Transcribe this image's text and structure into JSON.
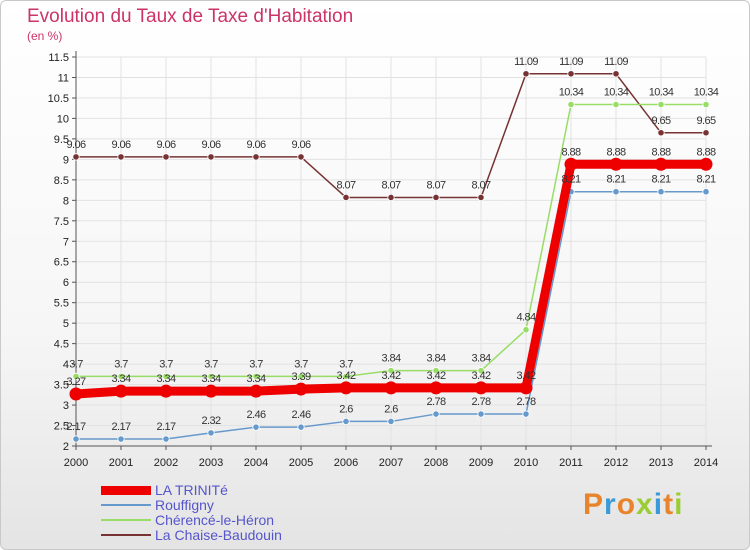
{
  "title": "Evolution du Taux de Taxe d'Habitation",
  "subtitle": "(en %)",
  "brand": "Proxiti",
  "colors": {
    "title": "#cc3366",
    "grid": "#e2e2e2",
    "axis": "#555555",
    "label": "#222222",
    "legend_text": "#5555cc",
    "brand_letters": [
      "#e8842c",
      "#3a9ad9",
      "#e8842c",
      "#9acd32",
      "#3a9ad9",
      "#e8842c",
      "#9acd32"
    ]
  },
  "chart_data": {
    "type": "line",
    "title": "Evolution du Taux de Taxe d'Habitation",
    "subtitle": "(en %)",
    "x": [
      2000,
      2001,
      2002,
      2003,
      2004,
      2005,
      2006,
      2007,
      2008,
      2009,
      2010,
      2011,
      2012,
      2013,
      2014
    ],
    "ylim": [
      2,
      11.5
    ],
    "yticks": [
      2,
      2.5,
      3,
      3.5,
      4,
      4.5,
      5,
      5.5,
      6,
      6.5,
      7,
      7.5,
      8,
      8.5,
      9,
      9.5,
      10,
      10.5,
      11,
      11.5
    ],
    "grid": true,
    "legend_position": "bottom-left",
    "series": [
      {
        "name": "LA TRINITé",
        "color": "#ee0000",
        "values": [
          3.27,
          3.34,
          3.34,
          3.34,
          3.34,
          3.39,
          3.42,
          3.42,
          3.42,
          3.42,
          3.42,
          8.88,
          8.88,
          8.88,
          8.88
        ],
        "labels": [
          "3.27",
          "3.34",
          "3.34",
          "3.34",
          "3.34",
          "3.39",
          "3.42",
          "3.42",
          "3.42",
          "3.42",
          "3.42",
          "8.88",
          "8.88",
          "8.88",
          "8.88"
        ]
      },
      {
        "name": "Rouffigny",
        "color": "#6699cc",
        "values": [
          2.17,
          2.17,
          2.17,
          2.32,
          2.46,
          2.46,
          2.6,
          2.6,
          2.78,
          2.78,
          2.78,
          8.21,
          8.21,
          8.21,
          8.21
        ],
        "labels": [
          "2.17",
          "2.17",
          "2.17",
          "2.32",
          "2.46",
          "2.46",
          "2.6",
          "2.6",
          "2.78",
          "2.78",
          "2.78",
          "8.21",
          "8.21",
          "8.21",
          "8.21"
        ]
      },
      {
        "name": "Chérencé-le-Héron",
        "color": "#99dd66",
        "values": [
          3.7,
          3.7,
          3.7,
          3.7,
          3.7,
          3.7,
          3.7,
          3.84,
          3.84,
          3.84,
          4.84,
          10.34,
          10.34,
          10.34,
          10.34
        ],
        "labels": [
          "3.7",
          "3.7",
          "3.7",
          "3.7",
          "3.7",
          "3.7",
          "3.7",
          "3.84",
          "3.84",
          "3.84",
          "4.84",
          "10.34",
          "10.34",
          "10.34",
          "10.34"
        ]
      },
      {
        "name": "La Chaise-Baudouin",
        "color": "#773333",
        "values": [
          9.06,
          9.06,
          9.06,
          9.06,
          9.06,
          9.06,
          8.07,
          8.07,
          8.07,
          8.07,
          11.09,
          11.09,
          11.09,
          9.65,
          9.65
        ],
        "labels": [
          "9.06",
          "9.06",
          "9.06",
          "9.06",
          "9.06",
          "9.06",
          "8.07",
          "8.07",
          "8.07",
          "8.07",
          "11.09",
          "11.09",
          "11.09",
          "9.65",
          "9.65"
        ]
      }
    ]
  }
}
